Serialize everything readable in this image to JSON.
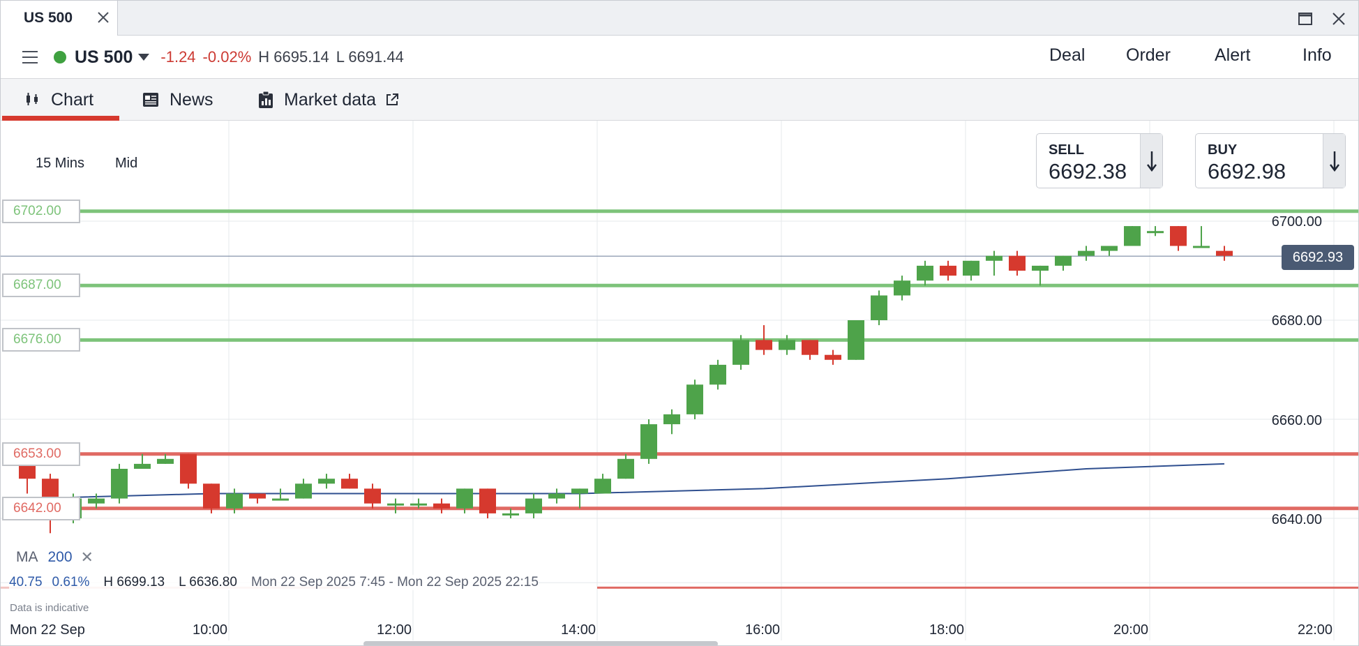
{
  "window": {
    "tab_title": "US 500"
  },
  "instrument": {
    "name": "US 500",
    "change": "-1.24",
    "change_pct": "-0.02%",
    "high": "H 6695.14",
    "low": "L 6691.44",
    "status_color": "#3fa140"
  },
  "topnav": [
    "Deal",
    "Order",
    "Alert",
    "Info"
  ],
  "subtabs": {
    "chart": "Chart",
    "news": "News",
    "market_data": "Market data"
  },
  "periods": {
    "interval": "15 Mins",
    "price_type": "Mid"
  },
  "prices": {
    "sell_label": "SELL",
    "sell_value": "6692.38",
    "buy_label": "BUY",
    "buy_value": "6692.98",
    "current": "6692.93"
  },
  "levels": [
    {
      "label": "6702.00",
      "value": 6702,
      "color": "#7dc37a"
    },
    {
      "label": "6687.00",
      "value": 6687,
      "color": "#7dc37a"
    },
    {
      "label": "6676.00",
      "value": 6676,
      "color": "#7dc37a"
    },
    {
      "label": "6653.00",
      "value": 6653,
      "color": "#e06a63"
    },
    {
      "label": "6642.00",
      "value": 6642,
      "color": "#e06a63"
    }
  ],
  "ma": {
    "name": "MA",
    "period": "200"
  },
  "stats": {
    "change": "40.75",
    "change_pct": "0.61%",
    "high": "H 6699.13",
    "low": "L 6636.80",
    "range": "Mon 22 Sep 2025 7:45 - Mon 22 Sep 2025 22:15",
    "note": "Data is indicative"
  },
  "chart_data": {
    "type": "candlestick",
    "date_label": "Mon 22 Sep",
    "y_ticks": [
      "6700.00",
      "6680.00",
      "6660.00",
      "6640.00"
    ],
    "y_tick_values": [
      6700,
      6680,
      6660,
      6640
    ],
    "x_ticks": [
      "10:00",
      "12:00",
      "14:00",
      "16:00",
      "18:00",
      "20:00",
      "22:00"
    ],
    "up_color": "#4ea34a",
    "down_color": "#d6392e",
    "ma_color": "#2f4f8f",
    "candles": [
      {
        "t": "07:45",
        "o": 6653,
        "h": 6654,
        "l": 6645,
        "c": 6648
      },
      {
        "t": "08:00",
        "o": 6648,
        "h": 6649,
        "l": 6637,
        "c": 6640
      },
      {
        "t": "08:15",
        "o": 6640,
        "h": 6645,
        "l": 6639,
        "c": 6644
      },
      {
        "t": "08:30",
        "o": 6643,
        "h": 6645,
        "l": 6642,
        "c": 6644
      },
      {
        "t": "08:45",
        "o": 6644,
        "h": 6651,
        "l": 6643,
        "c": 6650
      },
      {
        "t": "09:00",
        "o": 6650,
        "h": 6653,
        "l": 6650,
        "c": 6651
      },
      {
        "t": "09:15",
        "o": 6651,
        "h": 6653,
        "l": 6651,
        "c": 6652
      },
      {
        "t": "09:30",
        "o": 6653,
        "h": 6653,
        "l": 6646,
        "c": 6647
      },
      {
        "t": "09:45",
        "o": 6647,
        "h": 6647,
        "l": 6641,
        "c": 6642
      },
      {
        "t": "10:00",
        "o": 6642,
        "h": 6646,
        "l": 6641,
        "c": 6645
      },
      {
        "t": "10:15",
        "o": 6645,
        "h": 6645,
        "l": 6643,
        "c": 6644
      },
      {
        "t": "10:30",
        "o": 6644,
        "h": 6646,
        "l": 6644,
        "c": 6644
      },
      {
        "t": "10:45",
        "o": 6644,
        "h": 6648,
        "l": 6644,
        "c": 6647
      },
      {
        "t": "11:00",
        "o": 6647,
        "h": 6649,
        "l": 6646,
        "c": 6648
      },
      {
        "t": "11:15",
        "o": 6648,
        "h": 6649,
        "l": 6646,
        "c": 6646
      },
      {
        "t": "11:30",
        "o": 6646,
        "h": 6647,
        "l": 6642,
        "c": 6643
      },
      {
        "t": "11:45",
        "o": 6643,
        "h": 6644,
        "l": 6641,
        "c": 6643
      },
      {
        "t": "12:00",
        "o": 6643,
        "h": 6644,
        "l": 6642,
        "c": 6643
      },
      {
        "t": "12:15",
        "o": 6643,
        "h": 6644,
        "l": 6641,
        "c": 6642
      },
      {
        "t": "12:30",
        "o": 6642,
        "h": 6646,
        "l": 6641,
        "c": 6646
      },
      {
        "t": "12:45",
        "o": 6646,
        "h": 6646,
        "l": 6640,
        "c": 6641
      },
      {
        "t": "13:00",
        "o": 6641,
        "h": 6642,
        "l": 6640,
        "c": 6641
      },
      {
        "t": "13:15",
        "o": 6641,
        "h": 6645,
        "l": 6640,
        "c": 6644
      },
      {
        "t": "13:30",
        "o": 6644,
        "h": 6646,
        "l": 6643,
        "c": 6645
      },
      {
        "t": "13:45",
        "o": 6645,
        "h": 6646,
        "l": 6642,
        "c": 6646
      },
      {
        "t": "14:00",
        "o": 6645,
        "h": 6649,
        "l": 6645,
        "c": 6648
      },
      {
        "t": "14:15",
        "o": 6648,
        "h": 6653,
        "l": 6648,
        "c": 6652
      },
      {
        "t": "14:30",
        "o": 6652,
        "h": 6660,
        "l": 6651,
        "c": 6659
      },
      {
        "t": "14:45",
        "o": 6659,
        "h": 6662,
        "l": 6657,
        "c": 6661
      },
      {
        "t": "15:00",
        "o": 6661,
        "h": 6668,
        "l": 6660,
        "c": 6667
      },
      {
        "t": "15:15",
        "o": 6667,
        "h": 6672,
        "l": 6666,
        "c": 6671
      },
      {
        "t": "15:30",
        "o": 6671,
        "h": 6677,
        "l": 6670,
        "c": 6676
      },
      {
        "t": "15:45",
        "o": 6676,
        "h": 6679,
        "l": 6673,
        "c": 6674
      },
      {
        "t": "16:00",
        "o": 6674,
        "h": 6677,
        "l": 6673,
        "c": 6676
      },
      {
        "t": "16:15",
        "o": 6676,
        "h": 6676,
        "l": 6672,
        "c": 6673
      },
      {
        "t": "16:30",
        "o": 6673,
        "h": 6674,
        "l": 6671,
        "c": 6672
      },
      {
        "t": "16:45",
        "o": 6672,
        "h": 6680,
        "l": 6672,
        "c": 6680
      },
      {
        "t": "17:00",
        "o": 6680,
        "h": 6686,
        "l": 6679,
        "c": 6685
      },
      {
        "t": "17:15",
        "o": 6685,
        "h": 6689,
        "l": 6684,
        "c": 6688
      },
      {
        "t": "17:30",
        "o": 6688,
        "h": 6692,
        "l": 6687,
        "c": 6691
      },
      {
        "t": "17:45",
        "o": 6691,
        "h": 6692,
        "l": 6688,
        "c": 6689
      },
      {
        "t": "18:00",
        "o": 6689,
        "h": 6692,
        "l": 6688,
        "c": 6692
      },
      {
        "t": "18:15",
        "o": 6692,
        "h": 6694,
        "l": 6689,
        "c": 6693
      },
      {
        "t": "18:30",
        "o": 6693,
        "h": 6694,
        "l": 6689,
        "c": 6690
      },
      {
        "t": "18:45",
        "o": 6690,
        "h": 6691,
        "l": 6687,
        "c": 6691
      },
      {
        "t": "19:00",
        "o": 6691,
        "h": 6693,
        "l": 6690,
        "c": 6693
      },
      {
        "t": "19:15",
        "o": 6693,
        "h": 6695,
        "l": 6692,
        "c": 6694
      },
      {
        "t": "19:30",
        "o": 6694,
        "h": 6695,
        "l": 6693,
        "c": 6695
      },
      {
        "t": "19:45",
        "o": 6695,
        "h": 6699,
        "l": 6695,
        "c": 6699
      },
      {
        "t": "20:00",
        "o": 6698,
        "h": 6699,
        "l": 6697,
        "c": 6698
      },
      {
        "t": "20:15",
        "o": 6699,
        "h": 6699,
        "l": 6694,
        "c": 6695
      },
      {
        "t": "20:30",
        "o": 6695,
        "h": 6699,
        "l": 6695,
        "c": 6695
      },
      {
        "t": "20:45",
        "o": 6694,
        "h": 6695,
        "l": 6692,
        "c": 6693
      }
    ],
    "ma_points": [
      [
        0,
        6644
      ],
      [
        8,
        6645
      ],
      [
        16,
        6645
      ],
      [
        24,
        6645
      ],
      [
        32,
        6646
      ],
      [
        40,
        6648
      ],
      [
        46,
        6650
      ],
      [
        52,
        6651
      ]
    ]
  }
}
